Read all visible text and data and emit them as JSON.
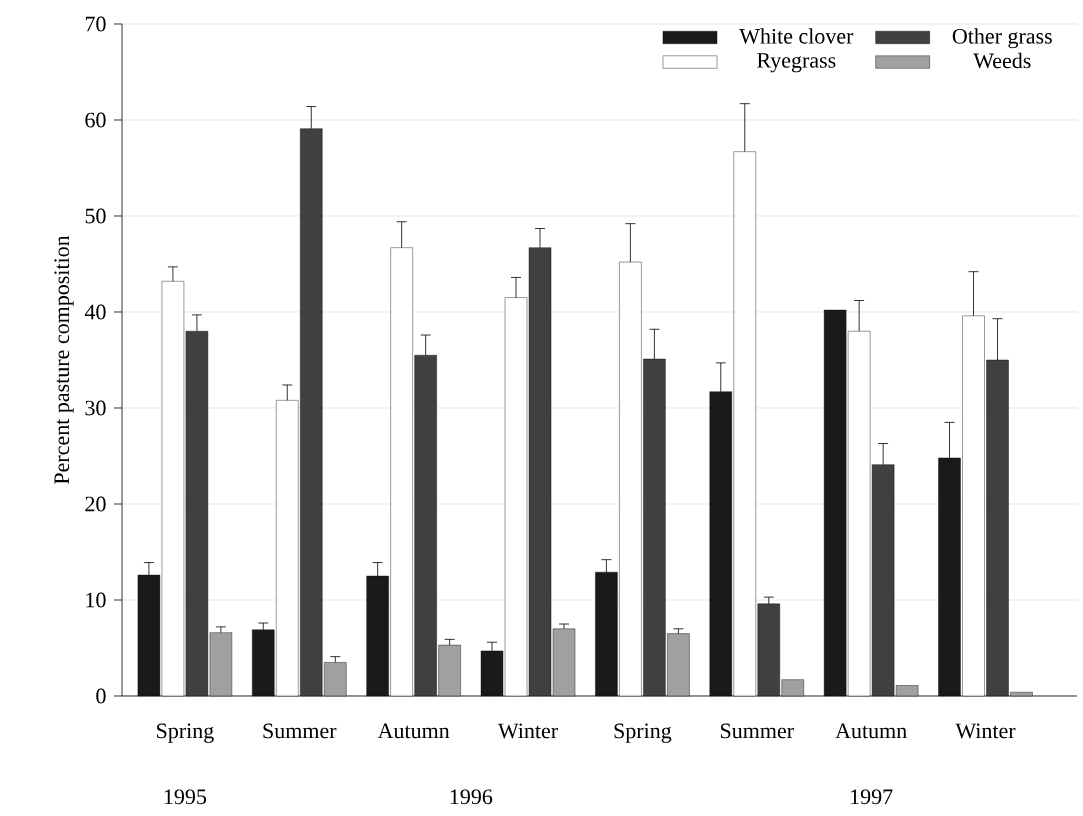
{
  "chart_data": {
    "type": "bar",
    "ylabel": "Percent pasture composition",
    "categories": [
      "Spring",
      "Summer",
      "Autumn",
      "Winter",
      "Spring",
      "Summer",
      "Autumn",
      "Winter"
    ],
    "series": [
      {
        "name": "White clover",
        "color": "#1a1a1a",
        "values": [
          12.6,
          6.9,
          12.5,
          4.7,
          12.9,
          31.7,
          40.2,
          24.8
        ],
        "errors": [
          [
            12.6,
            13.9
          ],
          [
            6.9,
            7.6
          ],
          [
            12.5,
            13.9
          ],
          [
            4.7,
            5.6
          ],
          [
            12.9,
            14.2
          ],
          [
            31.7,
            34.7
          ],
          null,
          [
            24.8,
            28.5
          ]
        ]
      },
      {
        "name": "Ryegrass",
        "color": "#ffffff",
        "values": [
          43.2,
          30.8,
          46.7,
          41.5,
          45.2,
          56.7,
          38.0,
          39.6
        ],
        "errors": [
          [
            43.2,
            44.7
          ],
          [
            30.8,
            32.4
          ],
          [
            46.7,
            49.4
          ],
          [
            41.5,
            43.6
          ],
          [
            45.2,
            49.2
          ],
          [
            56.7,
            61.7
          ],
          [
            38.0,
            41.2
          ],
          [
            39.6,
            44.2
          ]
        ]
      },
      {
        "name": "Other grass",
        "color": "#404040",
        "values": [
          38.0,
          59.1,
          35.5,
          46.7,
          35.1,
          9.6,
          24.1,
          35.0
        ],
        "errors": [
          [
            38.0,
            39.7
          ],
          [
            59.1,
            61.4
          ],
          [
            35.5,
            37.6
          ],
          [
            46.7,
            48.7
          ],
          [
            35.1,
            38.2
          ],
          [
            9.6,
            10.3
          ],
          [
            24.1,
            26.3
          ],
          [
            35.0,
            39.3
          ]
        ]
      },
      {
        "name": "Weeds",
        "color": "#a0a0a0",
        "values": [
          6.6,
          3.5,
          5.3,
          7.0,
          6.5,
          1.7,
          1.1,
          0.4
        ],
        "errors": [
          [
            6.6,
            7.2
          ],
          [
            3.5,
            4.1
          ],
          [
            5.3,
            5.9
          ],
          [
            7.0,
            7.5
          ],
          [
            6.5,
            7.0
          ],
          null,
          null,
          null
        ]
      }
    ],
    "annotations": [
      "1995",
      "1996",
      "1997"
    ],
    "ylim": [
      0,
      70
    ],
    "yticks": [
      0,
      10,
      20,
      30,
      40,
      50,
      60,
      70
    ],
    "grid": "y",
    "legend": "top right"
  }
}
